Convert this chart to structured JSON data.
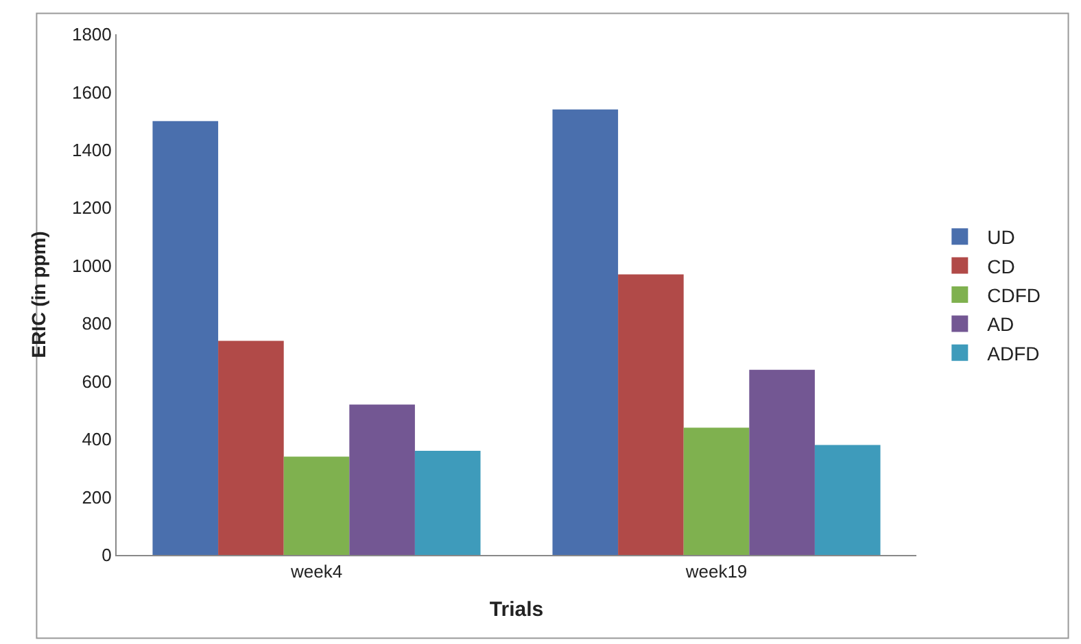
{
  "chart_data": {
    "type": "bar",
    "xlabel": "Trials",
    "ylabel": "ERIC (in ppm)",
    "categories": [
      "week4",
      "week19"
    ],
    "series": [
      {
        "name": "UD",
        "color": "#4a6fad",
        "values": [
          1500,
          1540
        ]
      },
      {
        "name": "CD",
        "color": "#b14a48",
        "values": [
          740,
          970
        ]
      },
      {
        "name": "CDFD",
        "color": "#7fb14f",
        "values": [
          340,
          440
        ]
      },
      {
        "name": "AD",
        "color": "#735793",
        "values": [
          520,
          640
        ]
      },
      {
        "name": "ADFD",
        "color": "#3e9bbb",
        "values": [
          360,
          380
        ]
      }
    ],
    "ylim": [
      0,
      1800
    ],
    "yticks": [
      0,
      200,
      400,
      600,
      800,
      1000,
      1200,
      1400,
      1600,
      1800
    ],
    "legend": "right"
  }
}
